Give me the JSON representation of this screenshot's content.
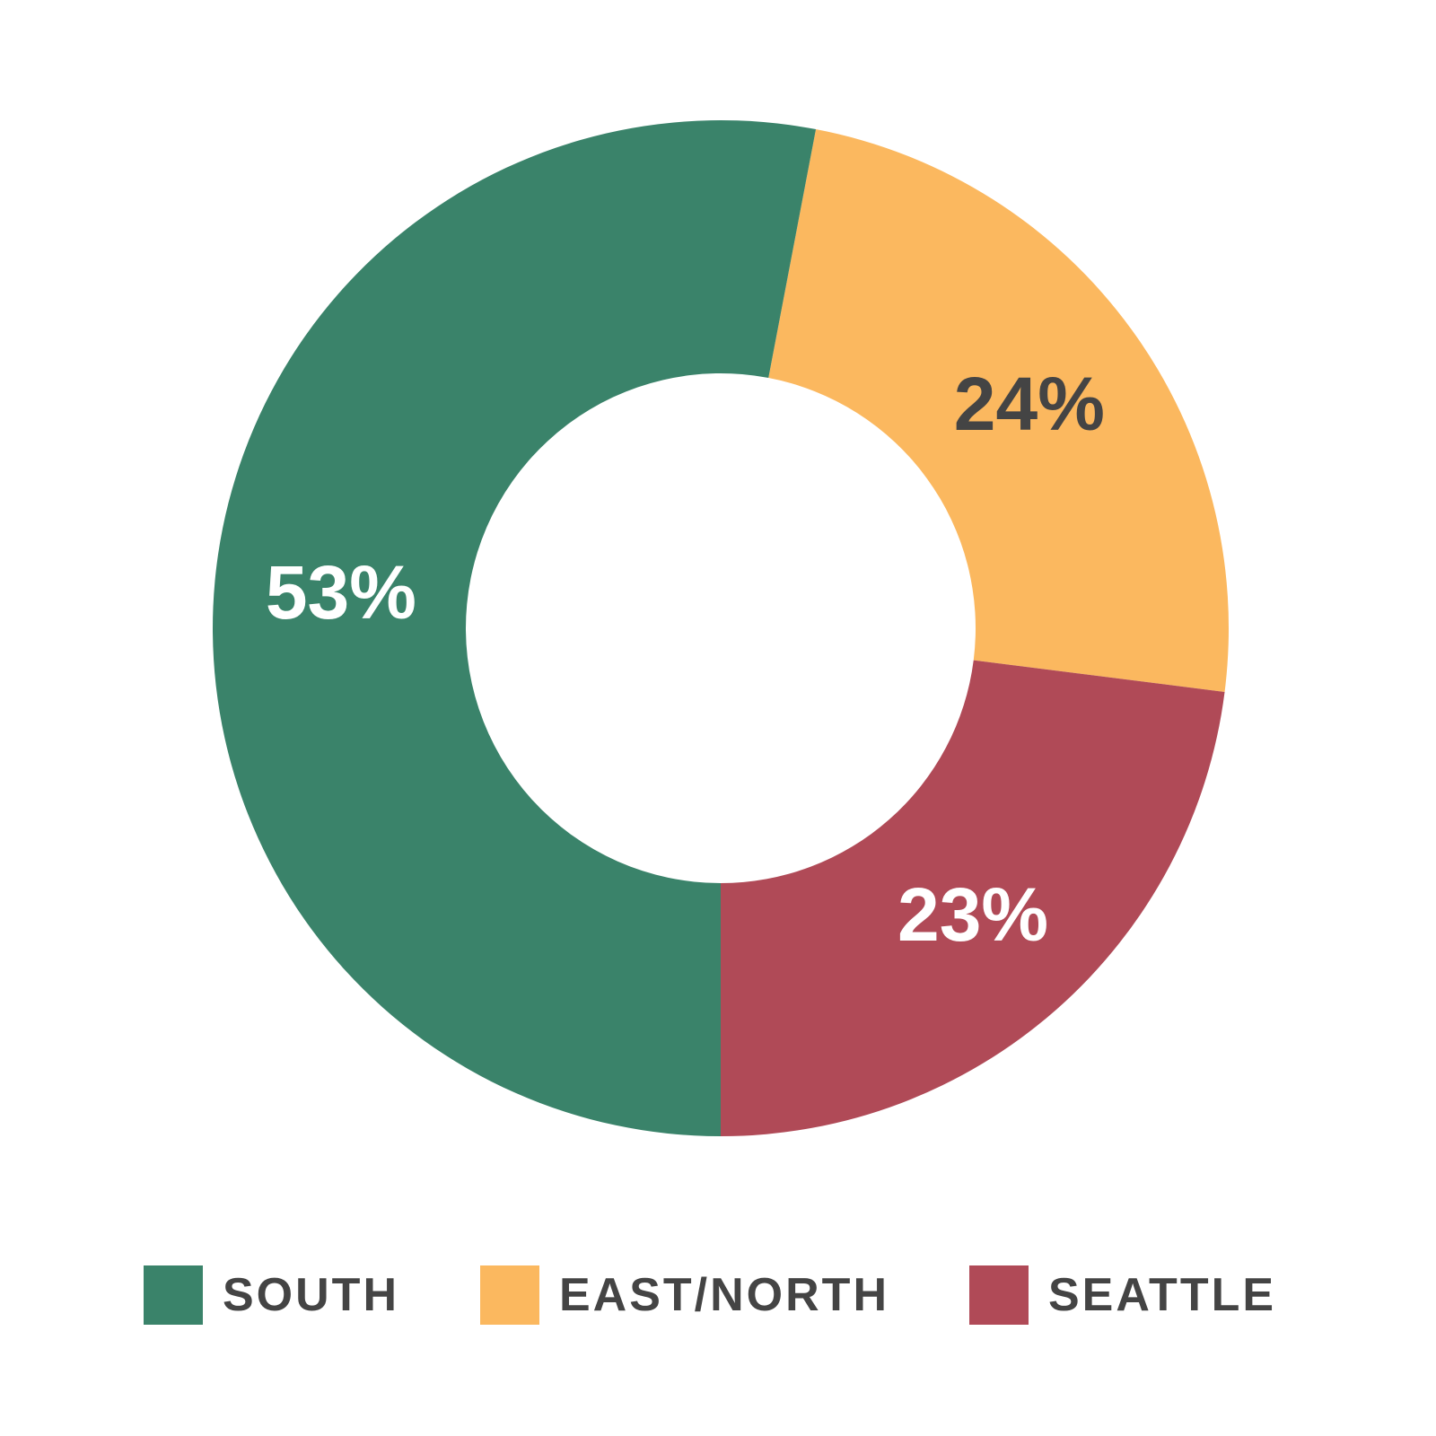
{
  "chart_data": {
    "type": "pie",
    "donut": true,
    "slices": [
      {
        "name": "SOUTH",
        "value": 53,
        "label": "53%",
        "color": "#3a836a",
        "label_color": "#ffffff"
      },
      {
        "name": "EAST/NORTH",
        "value": 24,
        "label": "24%",
        "color": "#fbb85f",
        "label_color": "#444444"
      },
      {
        "name": "SEATTLE",
        "value": 23,
        "label": "23%",
        "color": "#b04a57",
        "label_color": "#ffffff"
      }
    ],
    "legend_position": "bottom"
  },
  "legend": {
    "items": [
      {
        "label": "SOUTH",
        "color": "#3a836a"
      },
      {
        "label": "EAST/NORTH",
        "color": "#fbb85f"
      },
      {
        "label": "SEATTLE",
        "color": "#b04a57"
      }
    ]
  }
}
